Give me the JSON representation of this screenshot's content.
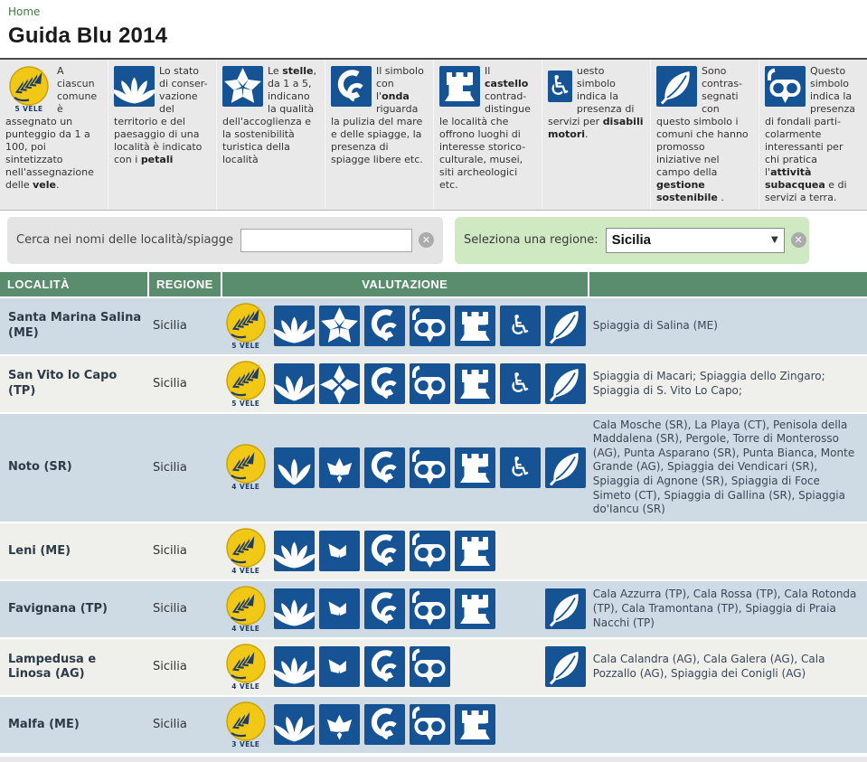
{
  "breadcrumb": {
    "home": "Home"
  },
  "page": {
    "title": "Guida Blu 2014"
  },
  "colors": {
    "icon_blue": "#155394",
    "navy": "#1d3d66",
    "vele_yellow": "#f2c816",
    "vele_ring": "#c9a20c",
    "header_green": "#5a8c6e",
    "row_blue": "#cedbe4",
    "row_light": "#efefeb",
    "box_green": "#cfe9c2",
    "box_gray": "#e4e4e4"
  },
  "glyphs": {
    "clear": "✕",
    "dropdown_arrow": "▼",
    "wheelchair": "♿"
  },
  "legend": [
    {
      "icon": "vele-icon",
      "badge_label": "5 VELE",
      "html": "A ciascun comune è assegnato un punteggio da 1 a 100, poi sintetizzato nell'assegnazione delle <b>vele</b>."
    },
    {
      "icon": "petali-icon",
      "html": "Lo stato di conser-vazione del territorio e del paesaggio di una località è indicato con i <b>petali</b>"
    },
    {
      "icon": "stelle-icon",
      "html": "Le <b>stelle</b>, da 1 a 5, indicano la qualità dell'accoglienza e la sostenibilità turistica della località"
    },
    {
      "icon": "onda-icon",
      "html": "Il simbolo con l'<b>onda</b> riguarda la pulizia del mare e delle spiagge, la presenza di spiagge libere etc."
    },
    {
      "icon": "castello-icon",
      "html": "Il <b>castello</b> contrad-distingue le località che offrono luoghi di interesse storico-culturale, musei, siti archeologici etc."
    },
    {
      "icon": "disabili-icon",
      "html": "uesto simbolo indica la presenza di servizi per <b>disabili motori</b>."
    },
    {
      "icon": "foglia-icon",
      "html": "Sono contras-segnati con questo simbolo i comuni che hanno promosso iniziative nel campo della <b>gestione sostenibile</b> ."
    },
    {
      "icon": "subacquea-icon",
      "html": "Questo simbolo indica la presenza di fondali parti-colarmente interessanti per chi pratica l'<b>attività subacquea</b> e di servizi a terra."
    }
  ],
  "search": {
    "label": "Cerca nei nomi delle località/spiagge",
    "value": ""
  },
  "region_filter": {
    "label": "Seleziona una regione:",
    "selected": "Sicilia"
  },
  "table": {
    "headers": [
      "LOCALITÀ",
      "REGIONE",
      "VALUTAZIONE",
      ""
    ],
    "rows": [
      {
        "locality": "Santa Marina Salina (ME)",
        "region": "Sicilia",
        "vele": 5,
        "vele_label": "5 VELE",
        "icons": [
          "petali-5",
          "stelle-5",
          "onda",
          "subacquea",
          "castello",
          "disabili",
          "foglia"
        ],
        "beaches": "Spiaggia di Salina (ME)"
      },
      {
        "locality": "San Vito lo Capo (TP)",
        "region": "Sicilia",
        "vele": 5,
        "vele_label": "5 VELE",
        "icons": [
          "petali-4",
          "stelle-4",
          "onda",
          "subacquea",
          "castello",
          "disabili",
          "foglia"
        ],
        "beaches": "Spiaggia di Macari; Spiaggia dello Zingaro; Spiaggia di S. Vito Lo Capo;"
      },
      {
        "locality": "Noto (SR)",
        "region": "Sicilia",
        "vele": 4,
        "vele_label": "4 VELE",
        "icons": [
          "petali-3",
          "stelle-3",
          "onda",
          "subacquea",
          "castello",
          "disabili",
          "foglia"
        ],
        "beaches": "Cala Mosche (SR), La Playa (CT), Penisola della Maddalena (SR), Pergole, Torre di Monterosso (AG), Punta Asparano (SR), Punta Bianca, Monte Grande (AG), Spiaggia dei Vendicari (SR), Spiaggia di Agnone (SR), Spiaggia di Foce Simeto (CT), Spiaggia di Gallina (SR), Spiaggia do'Iancu (SR)"
      },
      {
        "locality": "Leni (ME)",
        "region": "Sicilia",
        "vele": 4,
        "vele_label": "4 VELE",
        "icons": [
          "petali-5",
          "stelle-2",
          "onda",
          "subacquea",
          "castello",
          null,
          null
        ],
        "beaches": ""
      },
      {
        "locality": "Favignana (TP)",
        "region": "Sicilia",
        "vele": 4,
        "vele_label": "4 VELE",
        "icons": [
          "petali-5",
          "stelle-2",
          "onda",
          "subacquea",
          "castello",
          null,
          "foglia"
        ],
        "beaches": "Cala Azzurra (TP), Cala Rossa (TP), Cala Rotonda (TP), Cala Tramontana (TP), Spiaggia di Praia Nacchi (TP)"
      },
      {
        "locality": "Lampedusa e Linosa (AG)",
        "region": "Sicilia",
        "vele": 4,
        "vele_label": "4 VELE",
        "icons": [
          "petali-5",
          "stelle-2",
          "onda",
          "subacquea",
          null,
          null,
          "foglia"
        ],
        "beaches": "Cala Calandra (AG), Cala Galera (AG), Cala Pozzallo (AG), Spiaggia dei Conigli (AG)"
      },
      {
        "locality": "Malfa (ME)",
        "region": "Sicilia",
        "vele": 3,
        "vele_label": "3 VELE",
        "icons": [
          "petali-4",
          "stelle-3",
          "onda",
          "subacquea",
          "castello",
          null,
          null
        ],
        "beaches": ""
      }
    ]
  }
}
